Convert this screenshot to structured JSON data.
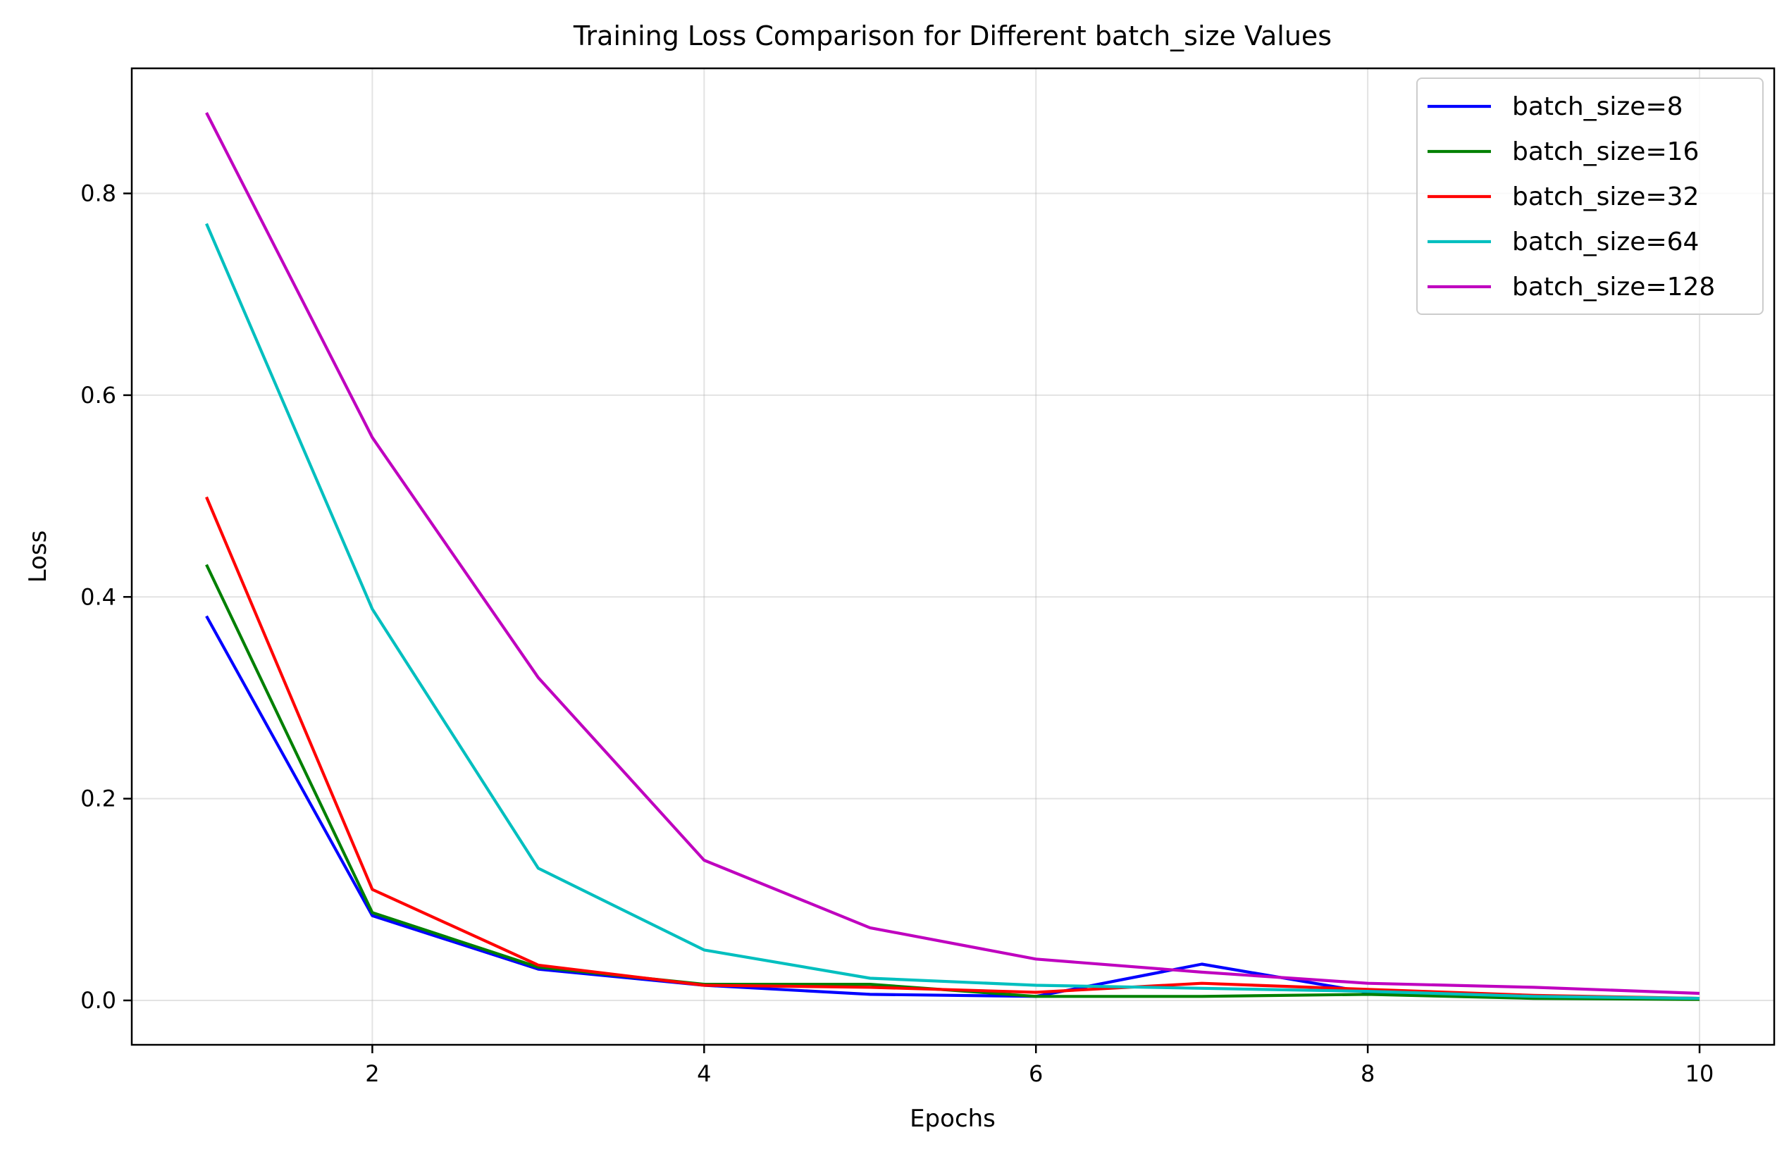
{
  "chart_data": {
    "type": "line",
    "title": "Training Loss Comparison for Different batch_size Values",
    "xlabel": "Epochs",
    "ylabel": "Loss",
    "xlim": [
      0.55,
      10.45
    ],
    "ylim": [
      -0.044,
      0.924
    ],
    "xticks": [
      2,
      4,
      6,
      8,
      10
    ],
    "xtick_labels": [
      "2",
      "4",
      "6",
      "8",
      "10"
    ],
    "yticks": [
      0.0,
      0.2,
      0.4,
      0.6,
      0.8
    ],
    "ytick_labels": [
      "0.0",
      "0.2",
      "0.4",
      "0.6",
      "0.8"
    ],
    "grid": true,
    "legend_position": "top-right",
    "x": [
      1,
      2,
      3,
      4,
      5,
      6,
      7,
      8,
      9,
      10
    ],
    "series": [
      {
        "name": "batch_size=8",
        "color": "#0000ff",
        "values": [
          0.381,
          0.084,
          0.031,
          0.015,
          0.006,
          0.004,
          0.036,
          0.008,
          0.004,
          0.002
        ]
      },
      {
        "name": "batch_size=16",
        "color": "#008000",
        "values": [
          0.432,
          0.087,
          0.033,
          0.016,
          0.016,
          0.004,
          0.004,
          0.006,
          0.002,
          0.001
        ]
      },
      {
        "name": "batch_size=32",
        "color": "#ff0000",
        "values": [
          0.499,
          0.11,
          0.035,
          0.015,
          0.013,
          0.008,
          0.017,
          0.011,
          0.005,
          0.002
        ]
      },
      {
        "name": "batch_size=64",
        "color": "#00bfbf",
        "values": [
          0.77,
          0.388,
          0.131,
          0.05,
          0.022,
          0.015,
          0.012,
          0.009,
          0.004,
          0.002
        ]
      },
      {
        "name": "batch_size=128",
        "color": "#bf00bf",
        "values": [
          0.88,
          0.558,
          0.32,
          0.139,
          0.072,
          0.041,
          0.028,
          0.017,
          0.013,
          0.007
        ]
      }
    ]
  }
}
